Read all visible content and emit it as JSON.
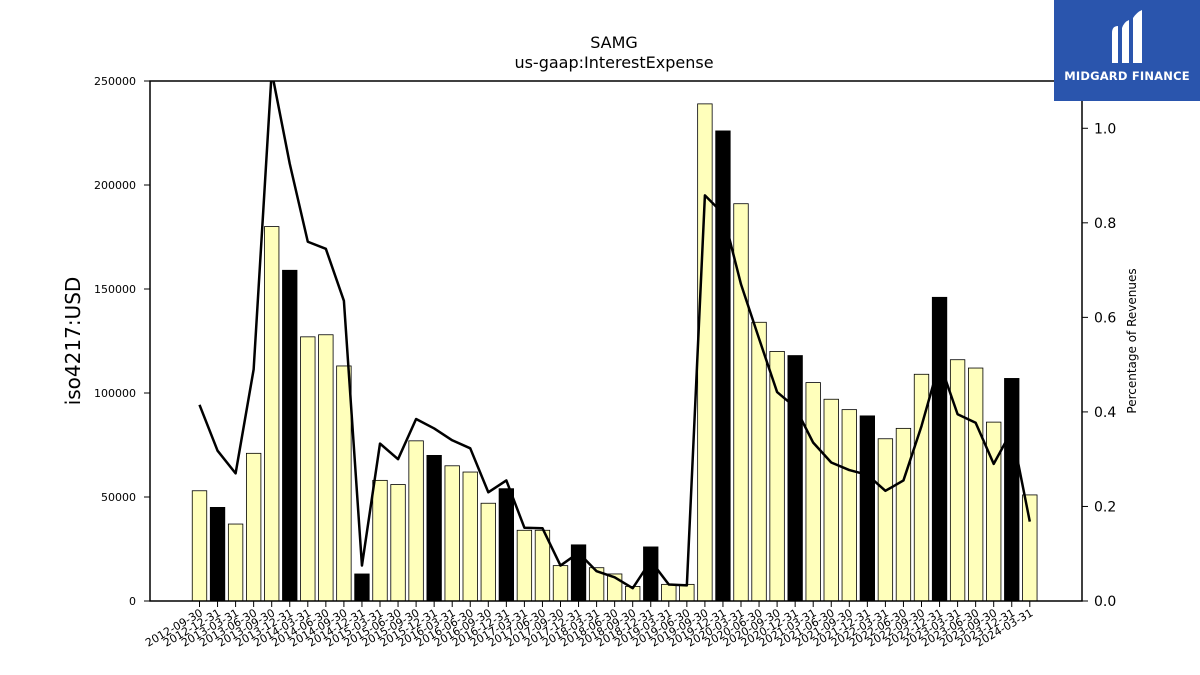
{
  "brand": {
    "name": "MIDGARD FINANCE",
    "bg_color": "#2a55ad"
  },
  "chart_data": {
    "type": "bar",
    "title": "SAMG",
    "subtitle": "us-gaap:InterestExpense",
    "ylabel": "iso4217:USD",
    "y2label": "Percentage of Revenues",
    "ylim": [
      0,
      250000
    ],
    "y2lim": [
      0.0,
      1.1
    ],
    "yticks": [
      0,
      50000,
      100000,
      150000,
      200000,
      250000
    ],
    "y2ticks": [
      "0.0",
      "0.2",
      "0.4",
      "0.6",
      "0.8",
      "1.0"
    ],
    "bar_color": "#ffffbb",
    "highlight_color": "#000000",
    "line_color": "#000000",
    "grid": false,
    "categories": [
      "2012-09-30",
      "2012-12-31",
      "2013-03-31",
      "2013-06-30",
      "2013-09-30",
      "2013-12-31",
      "2014-03-31",
      "2014-06-30",
      "2014-09-30",
      "2014-12-31",
      "2015-03-31",
      "2015-06-30",
      "2015-09-30",
      "2015-12-31",
      "2016-03-31",
      "2016-06-30",
      "2016-09-30",
      "2016-12-31",
      "2017-03-31",
      "2017-06-30",
      "2017-09-30",
      "2017-12-31",
      "2018-03-31",
      "2018-06-30",
      "2018-09-30",
      "2018-12-31",
      "2019-03-31",
      "2019-06-30",
      "2019-09-30",
      "2019-12-31",
      "2020-03-31",
      "2020-06-30",
      "2020-09-30",
      "2020-12-31",
      "2021-03-31",
      "2021-06-30",
      "2021-09-30",
      "2021-12-31",
      "2022-03-31",
      "2022-06-30",
      "2022-09-30",
      "2022-12-31",
      "2023-03-31",
      "2023-06-30",
      "2023-09-30",
      "2023-12-31",
      "2024-03-31"
    ],
    "xtick_labels": [
      "2012-09-30",
      "2012-12-31",
      "2013-03-31",
      "2013-06-30",
      "2013-09-30",
      "2013-12-31",
      "2014-03-31",
      "2014-06-30",
      "2014-09-30",
      "2014-12-31",
      "2015-03-31",
      "2015-06-30",
      "2015-09-30",
      "2015-12-31",
      "2016-03-31",
      "2016-06-30",
      "2016-09-30",
      "2016-12-31",
      "2017-03-31",
      "2017-06-30",
      "2017-09-30",
      "2017-12-31",
      "2018-03-31",
      "2018-06-30",
      "2018-09-30",
      "2018-12-31",
      "2019-03-31",
      "2019-06-30",
      "2019-09-30",
      "2019-12-31",
      "2020-03-31",
      "2020-06-30",
      "2020-09-30",
      "2020-12-31",
      "2021-03-31",
      "2021-06-30",
      "2021-09-30",
      "2021-12-31",
      "2022-03-31",
      "2022-06-30",
      "2022-09-30",
      "2022-12-31",
      "2023-03-31",
      "2023-06-30",
      "2023-09-30",
      "2023-12-31",
      "2024-03-31"
    ],
    "values": [
      53000,
      45000,
      37000,
      71000,
      180000,
      159000,
      127000,
      128000,
      113000,
      13000,
      58000,
      56000,
      77000,
      70000,
      65000,
      62000,
      47000,
      54000,
      34000,
      34000,
      17000,
      27000,
      16000,
      13000,
      7000,
      26000,
      8000,
      8000,
      239000,
      226000,
      191000,
      134000,
      120000,
      118000,
      105000,
      97000,
      92000,
      89000,
      78000,
      83000,
      109000,
      146000,
      116000,
      112000,
      86000,
      107000,
      51000
    ],
    "highlight": [
      false,
      true,
      false,
      false,
      false,
      true,
      false,
      false,
      false,
      true,
      false,
      false,
      false,
      true,
      false,
      false,
      false,
      true,
      false,
      false,
      false,
      true,
      false,
      false,
      false,
      true,
      false,
      false,
      false,
      true,
      false,
      false,
      false,
      true,
      false,
      false,
      false,
      true,
      false,
      false,
      false,
      true,
      false,
      false,
      false,
      true,
      false
    ],
    "pct_revenues": [
      0.415,
      0.318,
      0.27,
      0.49,
      1.12,
      0.925,
      0.76,
      0.745,
      0.635,
      0.075,
      0.333,
      0.3,
      0.385,
      0.365,
      0.34,
      0.323,
      0.23,
      0.255,
      0.155,
      0.154,
      0.075,
      0.102,
      0.063,
      0.05,
      0.027,
      0.085,
      0.035,
      0.033,
      0.858,
      0.82,
      0.67,
      0.555,
      0.442,
      0.41,
      0.335,
      0.293,
      0.277,
      0.267,
      0.233,
      0.255,
      0.37,
      0.505,
      0.395,
      0.377,
      0.29,
      0.36,
      0.168
    ]
  }
}
